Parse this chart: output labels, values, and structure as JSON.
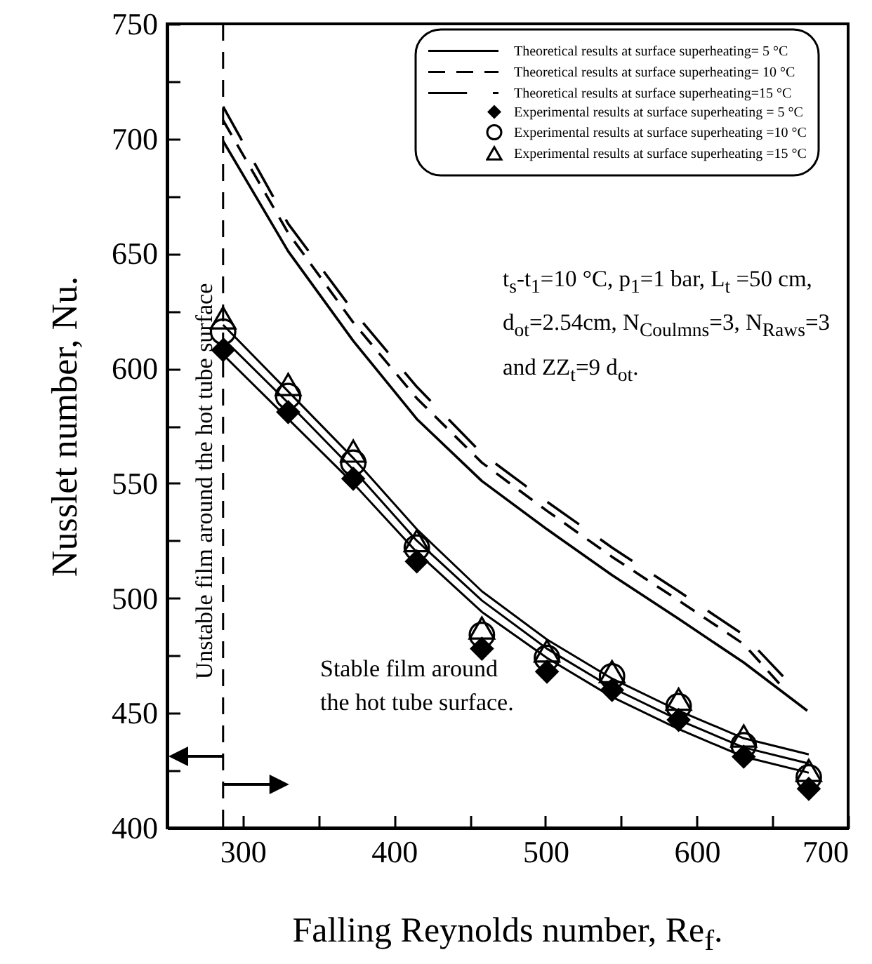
{
  "chart_data": {
    "type": "scatter",
    "xlabel": "Falling Reynolds number, Re$_{f}$.",
    "ylabel": "Nusslet number, Nu.",
    "x": [
      287,
      330,
      373,
      415,
      458,
      501,
      544,
      588,
      631,
      674
    ],
    "xlim": [
      250,
      700
    ],
    "xticks": [
      300,
      {
        "value": 350,
        "label": null
      },
      400,
      {
        "value": 450,
        "label": null
      },
      500,
      {
        "value": 550,
        "label": null
      },
      600,
      {
        "value": 650,
        "label": null
      },
      700
    ],
    "ylim": [
      400,
      750
    ],
    "yticks": [
      400,
      {
        "value": 425,
        "label": null
      },
      450,
      {
        "value": 475,
        "label": null
      },
      500,
      {
        "value": 525,
        "label": null
      },
      550,
      {
        "value": 575,
        "label": null
      },
      600,
      {
        "value": 625,
        "label": null
      },
      650,
      {
        "value": 675,
        "label": null
      },
      700,
      {
        "value": 725,
        "label": null
      },
      750
    ],
    "grid": false,
    "legend": "top right",
    "series": [
      {
        "type": "line",
        "name": "Theoretical results at surface superheating= 5 °C",
        "color": "#000000",
        "line_style": "solid",
        "x": [
          287,
          330,
          373,
          415,
          458,
          501,
          544,
          588,
          631,
          673
        ],
        "values": [
          699,
          651,
          612,
          578,
          551,
          530,
          510,
          491,
          472,
          451
        ]
      },
      {
        "type": "line",
        "name": "Theoretical results at surface superheating= 10 °C",
        "color": "#000000",
        "line_style": "dashed",
        "x": [
          287,
          330,
          373,
          415,
          458,
          501,
          544,
          588,
          631,
          657
        ],
        "values": [
          708,
          659,
          620,
          587,
          559,
          538,
          518,
          499,
          480,
          461
        ]
      },
      {
        "type": "line",
        "name": "Theoretical results at surface superheating=15 °C",
        "color": "#000000",
        "line_style": "dashed",
        "x": [
          287,
          330,
          373,
          415,
          458,
          501,
          544,
          588,
          631,
          657
        ],
        "values": [
          714,
          663,
          625,
          592,
          563,
          542,
          522,
          503,
          484,
          466
        ]
      },
      {
        "type": "scatter",
        "name": "Experimental results at surface superheating = 5 °C",
        "color": "#000000",
        "marker": "diamond",
        "values": [
          608,
          581,
          552,
          516,
          478,
          468,
          460,
          447,
          431,
          417
        ]
      },
      {
        "type": "scatter",
        "name": "Experimental results at surface superheating =10 °C",
        "color": "#000000",
        "marker": "circle",
        "values": [
          616,
          588,
          559,
          522,
          484,
          474,
          466,
          453,
          436,
          422
        ]
      },
      {
        "type": "scatter",
        "name": "Experimental results at surface superheating =15 °C",
        "color": "#000000",
        "marker": "triangle",
        "values": [
          622,
          593,
          564,
          525,
          487,
          477,
          468,
          456,
          440,
          425
        ]
      },
      {
        "type": "line",
        "color": "#000000",
        "line_style": "solid",
        "values": [
          606,
          578,
          550,
          520,
          494,
          474,
          457,
          443,
          431,
          424
        ]
      },
      {
        "type": "line",
        "color": "#000000",
        "line_style": "solid",
        "values": [
          613,
          585,
          556,
          525,
          499,
          478,
          461,
          447,
          435,
          428
        ]
      },
      {
        "type": "line",
        "color": "#000000",
        "line_style": "solid",
        "values": [
          619,
          590,
          561,
          530,
          503,
          482,
          465,
          451,
          439,
          432
        ]
      }
    ],
    "ref_lines": [
      {
        "axis": "x",
        "value": 287,
        "line_style": "dashed",
        "color": "#000000"
      }
    ],
    "annotations": [
      "Unstable film around the hot tube surface",
      "Stable film around\nthe hot tube surface.",
      "t$_{s}$-t$_{1}$=10 °C, p$_{1}$=1 bar, L$_{t}$ =50 cm, d$_{ot}$=2.54cm, N$_{Coulmns}$=3, N$_{Raws}$=3 and ZZ$_{t}$=9 d$_{ot}$."
    ]
  }
}
